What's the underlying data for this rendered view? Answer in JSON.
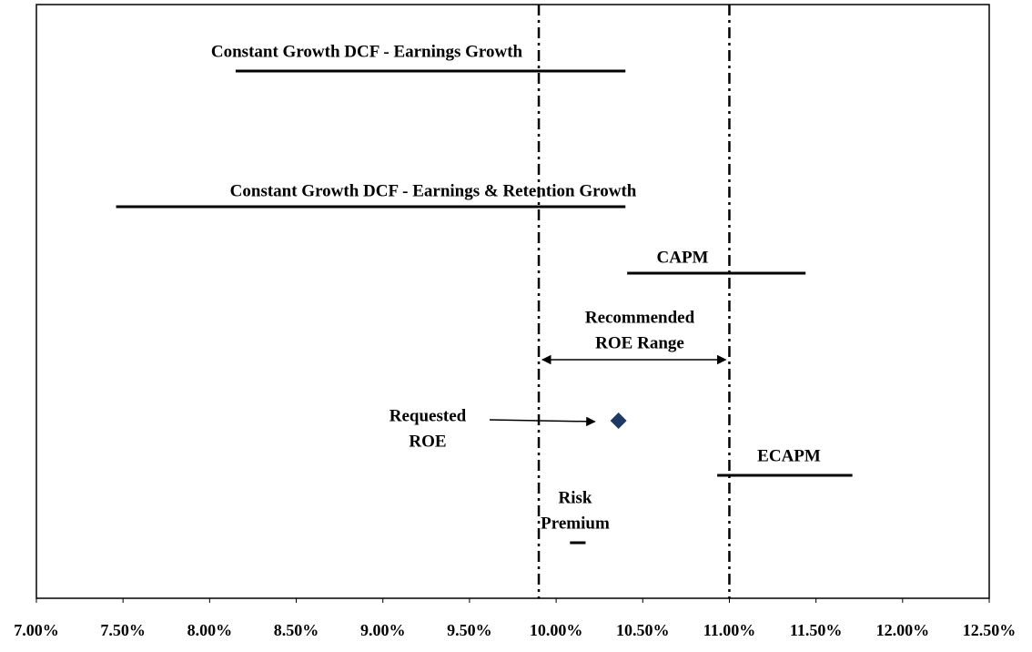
{
  "chart_data": {
    "type": "range",
    "xlim": [
      7.0,
      12.5
    ],
    "xticks": [
      {
        "value": 7.0,
        "label": "7.00%"
      },
      {
        "value": 7.5,
        "label": "7.50%"
      },
      {
        "value": 8.0,
        "label": "8.00%"
      },
      {
        "value": 8.5,
        "label": "8.50%"
      },
      {
        "value": 9.0,
        "label": "9.00%"
      },
      {
        "value": 9.5,
        "label": "9.50%"
      },
      {
        "value": 10.0,
        "label": "10.00%"
      },
      {
        "value": 10.5,
        "label": "10.50%"
      },
      {
        "value": 11.0,
        "label": "11.00%"
      },
      {
        "value": 11.5,
        "label": "11.50%"
      },
      {
        "value": 12.0,
        "label": "12.00%"
      },
      {
        "value": 12.5,
        "label": "12.50%"
      }
    ],
    "ranges": [
      {
        "label": [
          "Constant Growth DCF - Earnings Growth"
        ],
        "low": 8.15,
        "high": 10.4
      },
      {
        "label": [
          "Constant Growth DCF - Earnings & Retention Growth"
        ],
        "low": 7.46,
        "high": 10.4
      },
      {
        "label": [
          "CAPM"
        ],
        "low": 10.41,
        "high": 11.44
      },
      {
        "label": [
          "ECAPM"
        ],
        "low": 10.93,
        "high": 11.71
      },
      {
        "label": [
          "Risk",
          "Premium"
        ],
        "low": 10.08,
        "high": 10.17
      }
    ],
    "band": {
      "label": [
        "Recommended",
        "ROE Range"
      ],
      "low": 9.9,
      "high": 11.0
    },
    "point": {
      "label": [
        "Requested",
        "ROE"
      ],
      "value": 10.36,
      "color": "#1f3864"
    }
  }
}
